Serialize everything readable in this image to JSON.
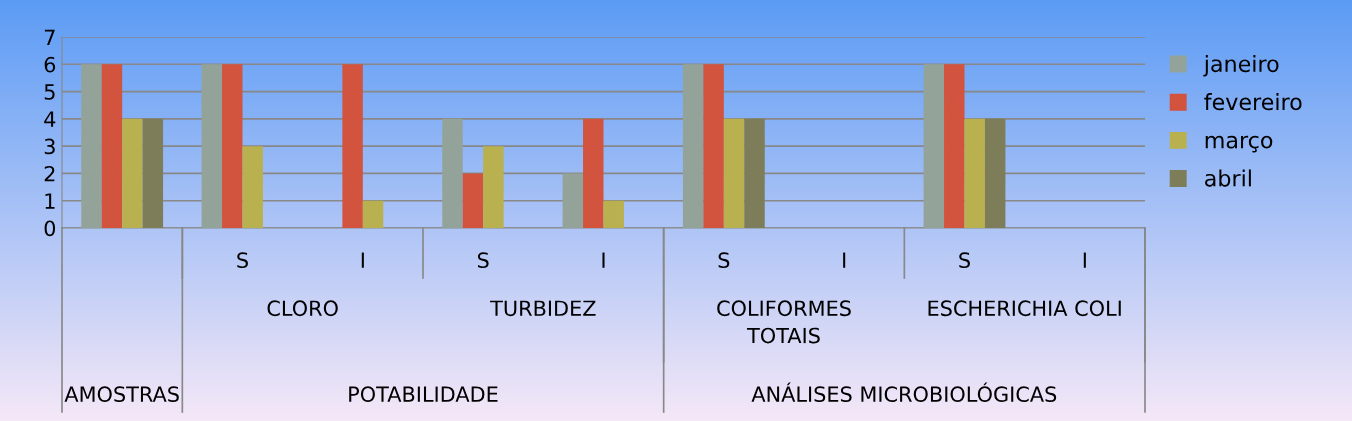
{
  "chart_data": {
    "type": "bar",
    "categories": [
      null,
      "S",
      "I",
      "S",
      "I",
      "S",
      "I",
      "S",
      "I"
    ],
    "series": [
      {
        "name": "janeiro",
        "color": "#93a39a",
        "values": [
          6,
          6,
          null,
          4,
          2,
          6,
          null,
          6,
          null
        ]
      },
      {
        "name": "fevereiro",
        "color": "#d2533e",
        "values": [
          6,
          6,
          6,
          2,
          4,
          6,
          null,
          6,
          null
        ]
      },
      {
        "name": "março",
        "color": "#b9b14f",
        "values": [
          4,
          3,
          1,
          3,
          1,
          4,
          null,
          4,
          null
        ]
      },
      {
        "name": "abril",
        "color": "#7d7d5a",
        "values": [
          4,
          null,
          null,
          null,
          null,
          4,
          null,
          4,
          null
        ]
      }
    ],
    "annotations": [
      "CLORO",
      "TURBIDEZ",
      "COLIFORMES\nTOTAIS",
      "ESCHERICHIA COLI",
      "AMOSTRAS",
      "POTABILIDADE",
      "ANÁLISES MICROBIOLÓGICAS"
    ],
    "ylim": [
      0,
      7
    ],
    "yticks": [
      0,
      1,
      2,
      3,
      4,
      5,
      6,
      7
    ],
    "grid": "y",
    "legend": "right"
  }
}
